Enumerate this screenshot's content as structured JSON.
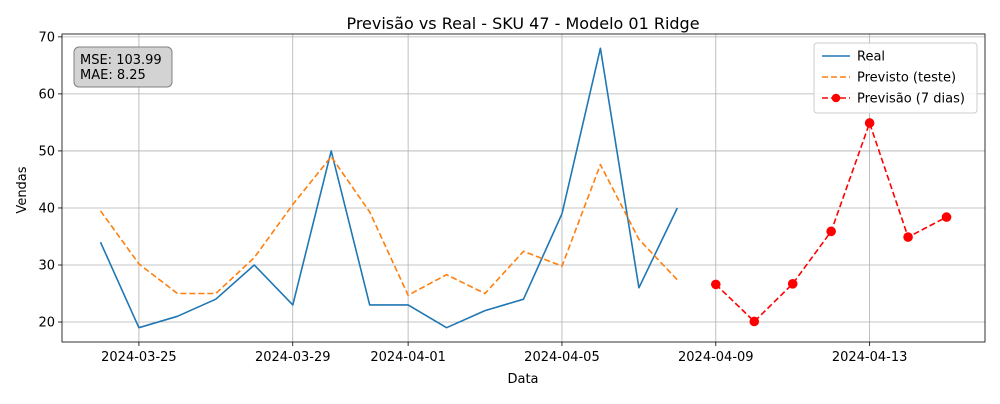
{
  "chart_data": {
    "type": "line",
    "title": "Previsão vs Real - SKU 47 - Modelo 01 Ridge",
    "xlabel": "Data",
    "ylabel": "Vendas",
    "x_type": "date",
    "xlim": [
      "2024-03-23",
      "2024-04-16"
    ],
    "ylim": [
      16.5,
      70.5
    ],
    "x_ticks": [
      {
        "date": "2024-03-25",
        "label": "2024-03-25"
      },
      {
        "date": "2024-03-29",
        "label": "2024-03-29"
      },
      {
        "date": "2024-04-01",
        "label": "2024-04-01"
      },
      {
        "date": "2024-04-05",
        "label": "2024-04-05"
      },
      {
        "date": "2024-04-09",
        "label": "2024-04-09"
      },
      {
        "date": "2024-04-13",
        "label": "2024-04-13"
      }
    ],
    "y_ticks": [
      20,
      30,
      40,
      50,
      60,
      70
    ],
    "grid": true,
    "legend_position": "top-right",
    "annotation": {
      "lines": [
        "MSE: 103.99",
        "MAE: 8.25"
      ]
    },
    "series": [
      {
        "name": "Real",
        "color": "#1f77b4",
        "style": "solid",
        "marker": "none",
        "x": [
          "2024-03-24",
          "2024-03-25",
          "2024-03-26",
          "2024-03-27",
          "2024-03-28",
          "2024-03-29",
          "2024-03-30",
          "2024-03-31",
          "2024-04-01",
          "2024-04-02",
          "2024-04-03",
          "2024-04-04",
          "2024-04-05",
          "2024-04-06",
          "2024-04-07",
          "2024-04-08"
        ],
        "y": [
          34,
          19,
          21,
          24,
          30,
          23,
          50,
          23,
          23,
          19,
          22,
          24,
          39,
          68,
          26,
          40
        ]
      },
      {
        "name": "Previsto (teste)",
        "color": "#ff7f0e",
        "style": "dashed",
        "marker": "none",
        "x": [
          "2024-03-24",
          "2024-03-25",
          "2024-03-26",
          "2024-03-27",
          "2024-03-28",
          "2024-03-29",
          "2024-03-30",
          "2024-03-31",
          "2024-04-01",
          "2024-04-02",
          "2024-04-03",
          "2024-04-04",
          "2024-04-05",
          "2024-04-06",
          "2024-04-07",
          "2024-04-08"
        ],
        "y": [
          39.5,
          30.2,
          25.0,
          25.0,
          31.3,
          40.6,
          49.0,
          39.3,
          24.7,
          28.3,
          25.0,
          32.4,
          29.8,
          47.6,
          34.5,
          27.4
        ]
      },
      {
        "name": "Previsão (7 dias)",
        "color": "#ff0000",
        "style": "dashed",
        "marker": "circle",
        "x": [
          "2024-04-09",
          "2024-04-10",
          "2024-04-11",
          "2024-04-12",
          "2024-04-13",
          "2024-04-14",
          "2024-04-15"
        ],
        "y": [
          26.6,
          20.1,
          26.7,
          35.9,
          54.9,
          34.9,
          38.4
        ]
      }
    ]
  }
}
